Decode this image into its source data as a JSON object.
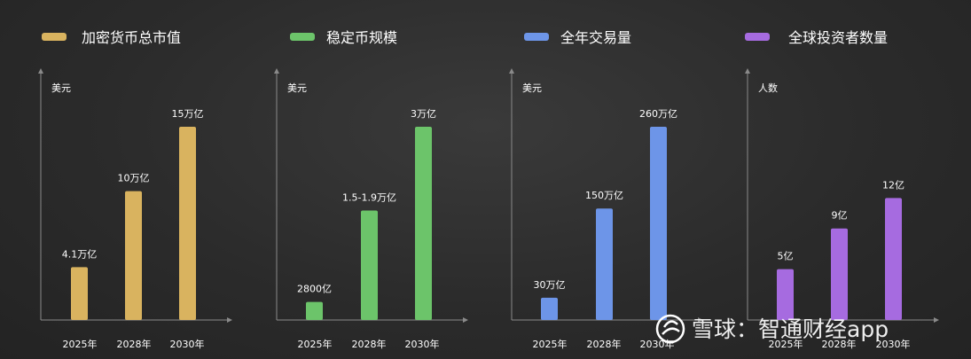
{
  "chart_data": [
    {
      "type": "bar",
      "title": "加密货币总市值",
      "color": "#d9b35f",
      "ylabel": "美元",
      "categories": [
        "2025年",
        "2028年",
        "2030年"
      ],
      "values": [
        4.1,
        10,
        15
      ],
      "value_labels": [
        "4.1万亿",
        "10万亿",
        "15万亿"
      ],
      "ylim": [
        0,
        15
      ]
    },
    {
      "type": "bar",
      "title": "稳定币规模",
      "color": "#6cc46a",
      "ylabel": "美元",
      "categories": [
        "2025年",
        "2028年",
        "2030年"
      ],
      "values": [
        0.28,
        1.7,
        3
      ],
      "value_labels": [
        "2800亿",
        "1.5-1.9万亿",
        "3万亿"
      ],
      "ylim": [
        0,
        3
      ]
    },
    {
      "type": "bar",
      "title": "全年交易量",
      "color": "#6d95e8",
      "ylabel": "美元",
      "categories": [
        "2025年",
        "2028年",
        "2030年"
      ],
      "values": [
        30,
        150,
        260
      ],
      "value_labels": [
        "30万亿",
        "150万亿",
        "260万亿"
      ],
      "ylim": [
        0,
        260
      ]
    },
    {
      "type": "bar",
      "title": "全球投资者数量",
      "color": "#a66be0",
      "ylabel": "人数",
      "categories": [
        "2025年",
        "2028年",
        "2030年"
      ],
      "values": [
        5,
        9,
        12
      ],
      "value_labels": [
        "5亿",
        "9亿",
        "12亿"
      ],
      "ylim": [
        0,
        19
      ]
    }
  ],
  "watermark": {
    "text": "雪球：智通财经app",
    "icon": "snowball-logo-icon"
  }
}
